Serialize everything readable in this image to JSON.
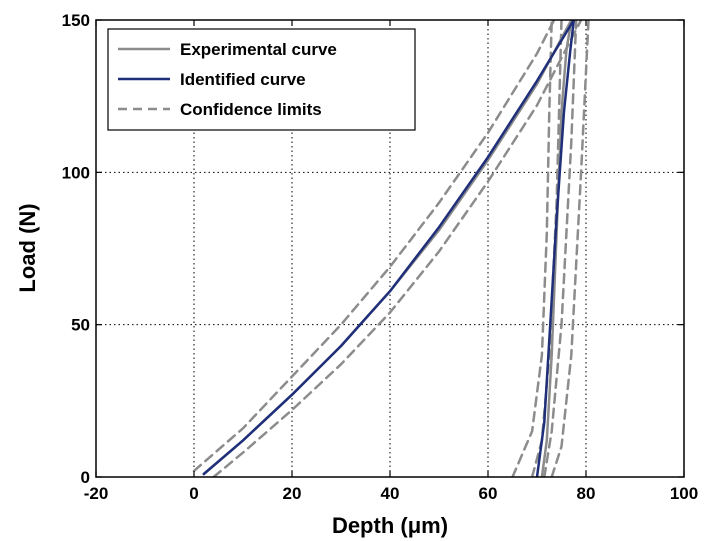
{
  "chart_data": {
    "type": "line",
    "xlabel": "Depth (μm)",
    "ylabel": "Load (N)",
    "xlim": [
      -20,
      100
    ],
    "ylim": [
      0,
      150
    ],
    "xticks": [
      -20,
      0,
      20,
      40,
      60,
      80,
      100
    ],
    "yticks": [
      0,
      50,
      100,
      150
    ],
    "xtick_labels": [
      "-20",
      "0",
      "20",
      "40",
      "60",
      "80",
      "100"
    ],
    "ytick_labels": [
      "0",
      "50",
      "100",
      "150"
    ],
    "grid": true,
    "legend_position": "top-left",
    "series": [
      {
        "name": "Experimental curve",
        "color": "#8c8c8c",
        "dash": "solid",
        "segments": [
          [
            [
              2,
              1
            ],
            [
              10,
              12
            ],
            [
              20,
              27
            ],
            [
              30,
              43
            ],
            [
              40,
              61
            ],
            [
              50,
              81
            ],
            [
              60,
              104
            ],
            [
              70,
              129
            ],
            [
              77,
              150
            ]
          ],
          [
            [
              71,
              0
            ],
            [
              72,
              12
            ],
            [
              73,
              40
            ],
            [
              74,
              80
            ],
            [
              75,
              120
            ],
            [
              76,
              140
            ],
            [
              77,
              150
            ]
          ]
        ]
      },
      {
        "name": "Identified curve",
        "color": "#1f2f7a",
        "dash": "solid",
        "segments": [
          [
            [
              2,
              1
            ],
            [
              10,
              12
            ],
            [
              20,
              27
            ],
            [
              30,
              43
            ],
            [
              40,
              61
            ],
            [
              50,
              82
            ],
            [
              60,
              105
            ],
            [
              70,
              130
            ],
            [
              77.5,
              150
            ]
          ],
          [
            [
              70,
              0
            ],
            [
              71.5,
              18
            ],
            [
              72.5,
              45
            ],
            [
              74,
              85
            ],
            [
              75.5,
              120
            ],
            [
              76.8,
              140
            ],
            [
              77.5,
              150
            ]
          ]
        ]
      },
      {
        "name": "Confidence limits",
        "color": "#8c8c8c",
        "dash": "dashed",
        "segments": [
          [
            [
              0,
              2
            ],
            [
              10,
              16
            ],
            [
              20,
              33
            ],
            [
              30,
              50
            ],
            [
              40,
              69
            ],
            [
              50,
              90
            ],
            [
              60,
              113
            ],
            [
              70,
              139
            ],
            [
              73.5,
              150
            ]
          ],
          [
            [
              4,
              0
            ],
            [
              10,
              8
            ],
            [
              20,
              22
            ],
            [
              30,
              37
            ],
            [
              40,
              54
            ],
            [
              50,
              74
            ],
            [
              60,
              97
            ],
            [
              70,
              122
            ],
            [
              79,
              150
            ]
          ],
          [
            [
              65,
              0
            ],
            [
              69,
              15
            ],
            [
              71,
              40
            ],
            [
              72,
              80
            ],
            [
              72.5,
              120
            ],
            [
              73,
              150
            ]
          ],
          [
            [
              73,
              0
            ],
            [
              75,
              10
            ],
            [
              77,
              40
            ],
            [
              79,
              100
            ],
            [
              80.5,
              150
            ]
          ],
          [
            [
              69,
              0
            ],
            [
              71,
              12
            ],
            [
              72.5,
              40
            ],
            [
              74,
              90
            ],
            [
              75,
              150
            ]
          ],
          [
            [
              71.5,
              0
            ],
            [
              73,
              15
            ],
            [
              75,
              50
            ],
            [
              77,
              110
            ],
            [
              78,
              150
            ]
          ]
        ]
      }
    ]
  }
}
